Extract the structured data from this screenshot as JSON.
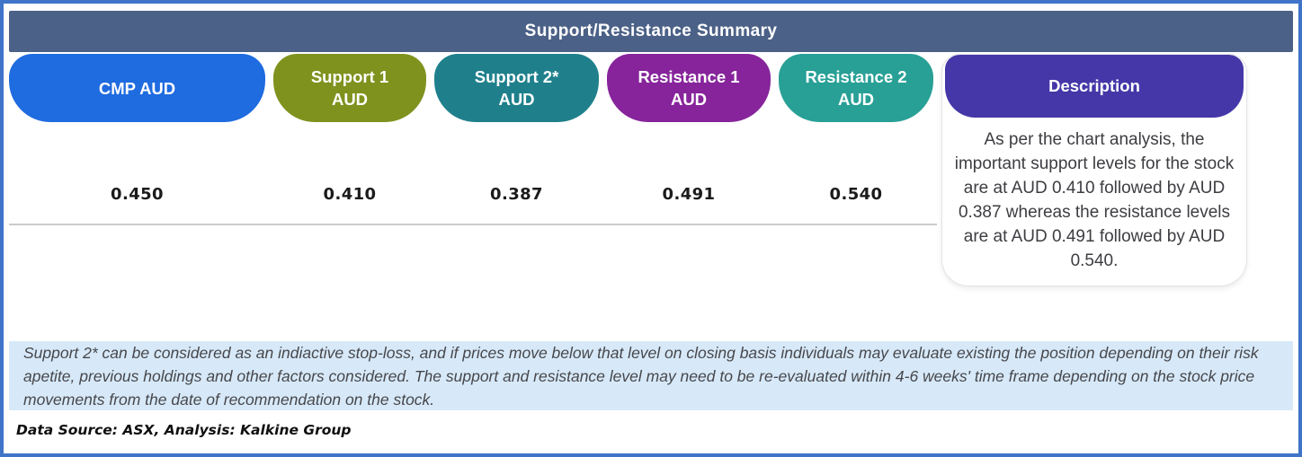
{
  "header": {
    "title": "Support/Resistance Summary"
  },
  "table": {
    "columns": [
      {
        "label": "CMP AUD",
        "value": "0.450",
        "color": "#1f6be0"
      },
      {
        "label": "Support 1 AUD",
        "value": "0.410",
        "color": "#7f921e"
      },
      {
        "label": "Support 2* AUD",
        "value": "0.387",
        "color": "#1f808c"
      },
      {
        "label": "Resistance 1 AUD",
        "value": "0.491",
        "color": "#87249b"
      },
      {
        "label": "Resistance 2 AUD",
        "value": "0.540",
        "color": "#28a096"
      }
    ]
  },
  "description": {
    "label": "Description",
    "color": "#4537a8",
    "text": "As per the chart analysis, the important support levels for the stock are at AUD 0.410 followed by AUD 0.387 whereas the resistance levels are at AUD 0.491 followed by AUD 0.540."
  },
  "footnote": "Support 2* can be considered as an indiactive stop-loss, and if prices move below that level on closing basis individuals may evaluate existing the position depending on their risk apetite, previous holdings and other factors considered. The support and resistance level may need to be re-evaluated within 4-6 weeks' time frame depending on the stock price movements from  the date of recommendation on the stock.",
  "data_source": "Data Source: ASX, Analysis: Kalkine Group",
  "colors": {
    "frame_border": "#3f74c9",
    "title_bar": "#4c6187",
    "footnote_bg": "#d7e9f8",
    "divider_line": "#cbcbcb"
  },
  "chart_data": {
    "type": "table",
    "title": "Support/Resistance Summary",
    "columns": [
      "CMP AUD",
      "Support 1 AUD",
      "Support 2* AUD",
      "Resistance 1 AUD",
      "Resistance 2 AUD",
      "Description"
    ],
    "rows": [
      [
        "0.450",
        "0.410",
        "0.387",
        "0.491",
        "0.540",
        "As per the chart analysis, the important support levels for the stock are at AUD 0.410 followed by AUD 0.387 whereas the resistance levels are at AUD 0.491 followed by AUD 0.540."
      ]
    ]
  }
}
